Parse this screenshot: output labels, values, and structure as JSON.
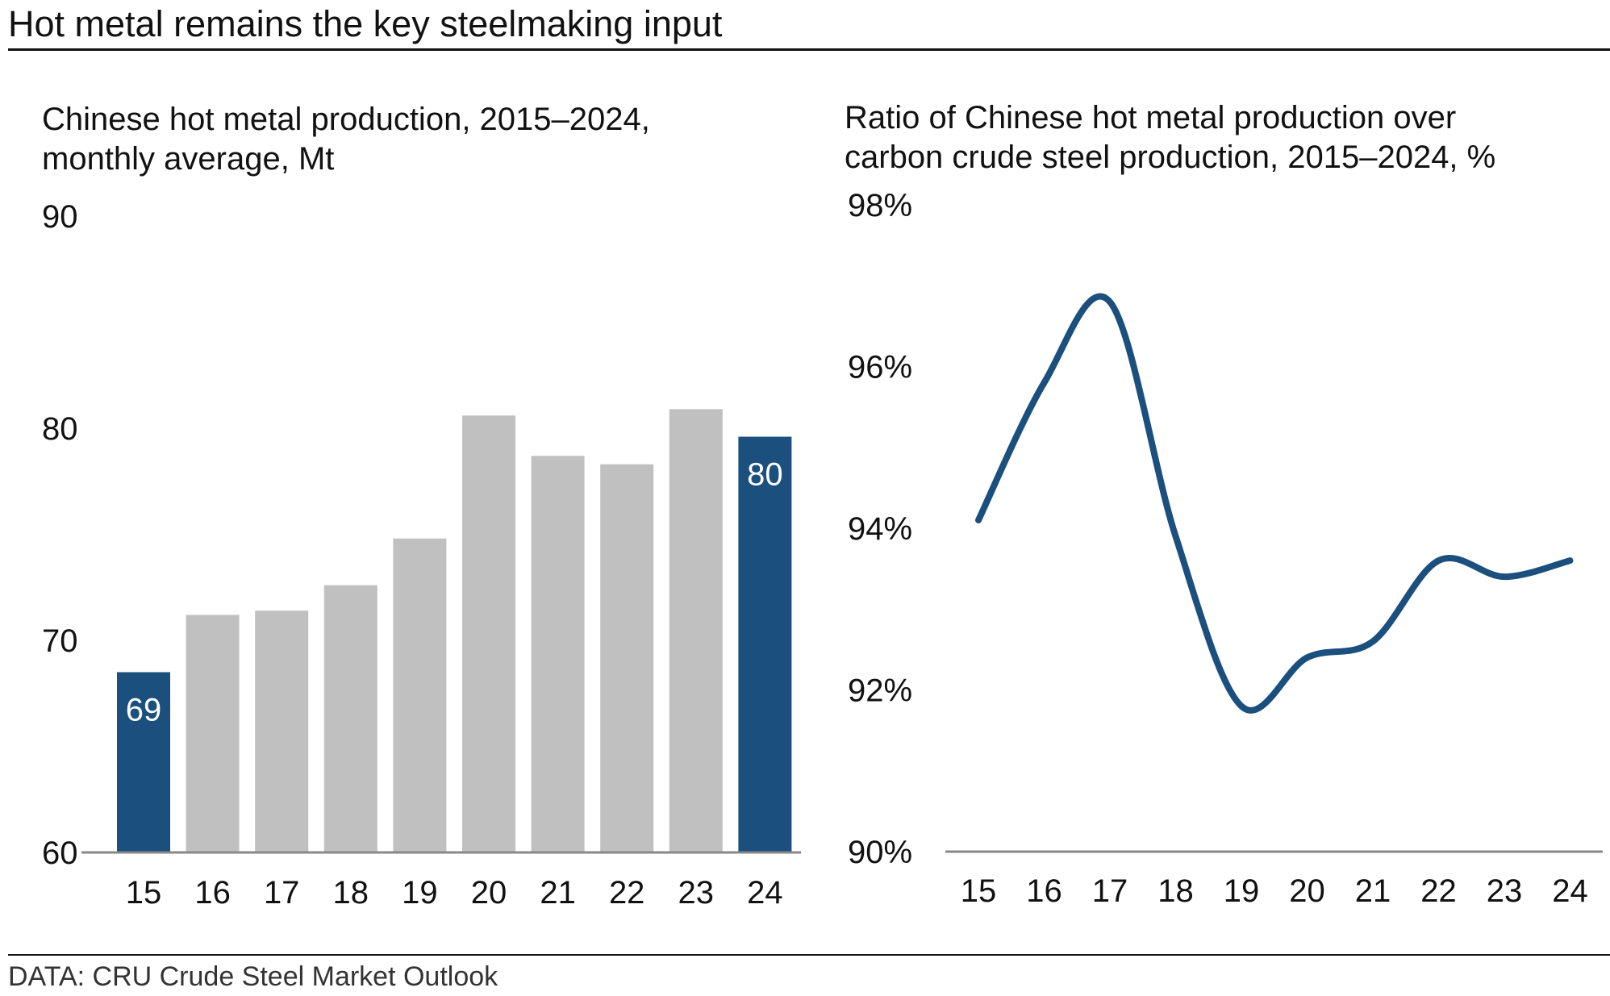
{
  "title": "Hot metal remains the key steelmaking input",
  "source": "DATA: CRU Crude Steel Market Outlook",
  "colors": {
    "highlight": "#1b4f7e",
    "bar": "#c0c0c0",
    "axis": "#888888",
    "line": "#1b4f7e"
  },
  "chart_data": [
    {
      "type": "bar",
      "title": "Chinese hot metal production, 2015–2024, monthly average, Mt",
      "title_lines": [
        "Chinese hot metal production, 2015–2024,",
        "monthly average, Mt"
      ],
      "categories": [
        "15",
        "16",
        "17",
        "18",
        "19",
        "20",
        "21",
        "22",
        "23",
        "24"
      ],
      "values": [
        68.5,
        71.2,
        71.4,
        72.6,
        74.8,
        80.6,
        78.7,
        78.3,
        80.9,
        79.6
      ],
      "highlight": [
        true,
        false,
        false,
        false,
        false,
        false,
        false,
        false,
        false,
        true
      ],
      "data_labels": [
        "69",
        "",
        "",
        "",
        "",
        "",
        "",
        "",
        "",
        "80"
      ],
      "ylim": [
        60,
        90
      ],
      "yticks": [
        60,
        70,
        80,
        90
      ],
      "ytick_labels": [
        "60",
        "70",
        "80",
        "90"
      ],
      "xlabel": "",
      "ylabel": ""
    },
    {
      "type": "line",
      "title": "Ratio of Chinese hot metal production over carbon crude steel production, 2015–2024, %",
      "title_lines": [
        "Ratio of Chinese hot metal production over",
        "carbon crude steel production, 2015–2024,  %"
      ],
      "x": [
        "15",
        "16",
        "17",
        "18",
        "19",
        "20",
        "21",
        "22",
        "23",
        "24"
      ],
      "values": [
        94.1,
        95.8,
        96.8,
        93.9,
        91.8,
        92.4,
        92.6,
        93.6,
        93.4,
        93.6
      ],
      "ylim": [
        90,
        98
      ],
      "yticks": [
        90,
        92,
        94,
        96,
        98
      ],
      "ytick_labels": [
        "90%",
        "92%",
        "94%",
        "96%",
        "98%"
      ],
      "xlabel": "",
      "ylabel": ""
    }
  ]
}
